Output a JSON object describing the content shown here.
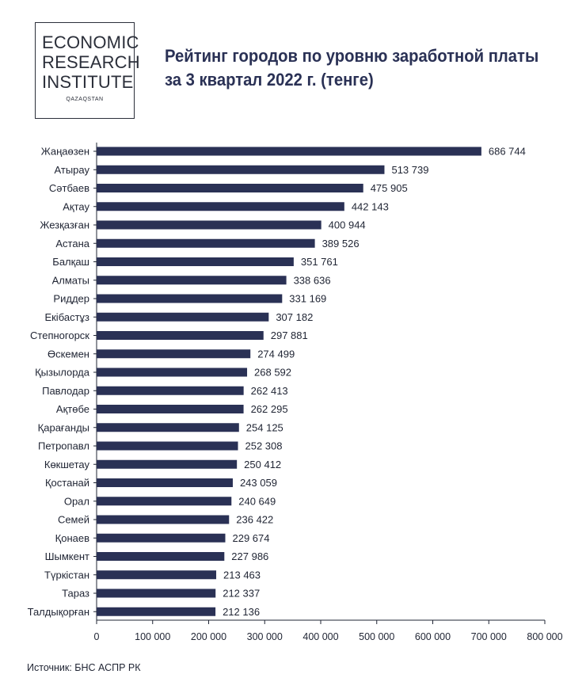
{
  "logo": {
    "lines": [
      "ECONOMIC",
      "RESEARCH",
      "INSTITUTE"
    ],
    "sub": "QAZAQSTAN"
  },
  "title_lines": [
    "Рейтинг городов по уровню заработной платы",
    "за 3 квартал 2022 г. (тенге)"
  ],
  "source": "Источник: БНС АСПР РК",
  "colors": {
    "bar": "#2a3155",
    "axis": "#1f2433"
  },
  "chart_data": {
    "type": "bar",
    "orientation": "horizontal",
    "title": "Рейтинг городов по уровню заработной платы за 3 квартал 2022 г. (тенге)",
    "xlabel": "",
    "ylabel": "",
    "xlim": [
      0,
      800000
    ],
    "xticks": [
      0,
      100000,
      200000,
      300000,
      400000,
      500000,
      600000,
      700000,
      800000
    ],
    "xtick_labels": [
      "0",
      "100 000",
      "200 000",
      "300 000",
      "400 000",
      "500 000",
      "600 000",
      "700 000",
      "800 000"
    ],
    "categories": [
      "Жаңаөзен",
      "Атырау",
      "Сәтбаев",
      "Ақтау",
      "Жезқазған",
      "Астана",
      "Балқаш",
      "Алматы",
      "Риддер",
      "Екібастұз",
      "Степногорск",
      "Өскемен",
      "Қызылорда",
      "Павлодар",
      "Ақтөбе",
      "Қарағанды",
      "Петропавл",
      "Көкшетау",
      "Қостанай",
      "Орал",
      "Семей",
      "Қонаев",
      "Шымкент",
      "Түркістан",
      "Тараз",
      "Талдықорған"
    ],
    "values": [
      686744,
      513739,
      475905,
      442143,
      400944,
      389526,
      351761,
      338636,
      331169,
      307182,
      297881,
      274499,
      268592,
      262413,
      262295,
      254125,
      252308,
      250412,
      243059,
      240649,
      236422,
      229674,
      227986,
      213463,
      212337,
      212136
    ],
    "value_labels": [
      "686 744",
      "513 739",
      "475 905",
      "442 143",
      "400 944",
      "389 526",
      "351 761",
      "338 636",
      "331 169",
      "307 182",
      "297 881",
      "274 499",
      "268 592",
      "262 413",
      "262 295",
      "254 125",
      "252 308",
      "250 412",
      "243 059",
      "240 649",
      "236 422",
      "229 674",
      "227 986",
      "213 463",
      "212 337",
      "212 136"
    ],
    "grid": false
  }
}
